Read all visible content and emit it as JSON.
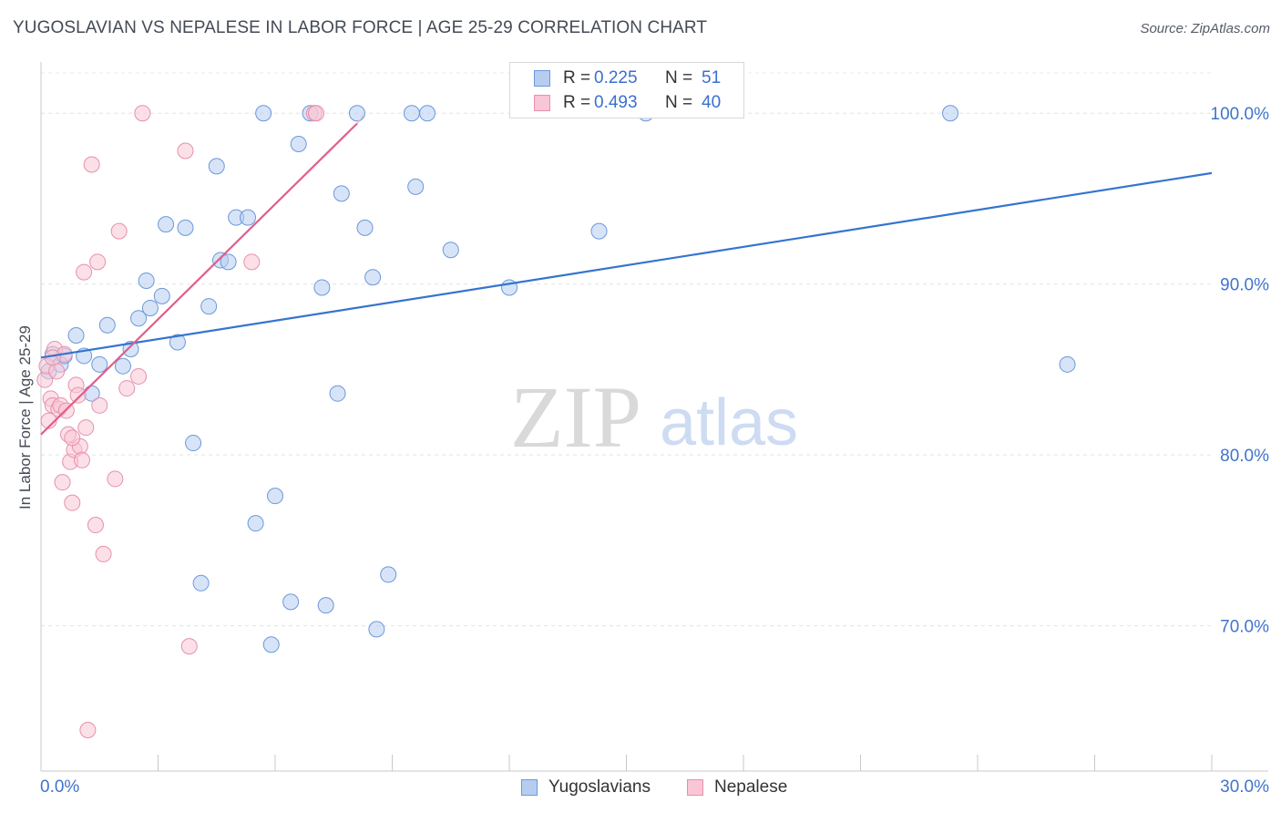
{
  "chart_data": {
    "type": "scatter",
    "title": "YUGOSLAVIAN VS NEPALESE IN LABOR FORCE | AGE 25-29 CORRELATION CHART",
    "source": "Source: ZipAtlas.com",
    "xlabel": "",
    "ylabel": "In Labor Force | Age 25-29",
    "xlim": [
      0,
      30
    ],
    "ylim": [
      61.5,
      103
    ],
    "x_tick_labels": [
      {
        "value": 0,
        "label": "0.0%"
      },
      {
        "value": 30,
        "label": "30.0%"
      }
    ],
    "y_tick_labels": [
      {
        "value": 100,
        "label": "100.0%"
      },
      {
        "value": 90,
        "label": "90.0%"
      },
      {
        "value": 80,
        "label": "80.0%"
      },
      {
        "value": 70,
        "label": "70.0%"
      }
    ],
    "watermark": {
      "part1": "ZIP",
      "part2": "atlas"
    },
    "stats_legend": [
      {
        "series": "Yugoslavians",
        "r_label": "R =",
        "r_value": "0.225",
        "n_label": "N =",
        "n_value": "51"
      },
      {
        "series": "Nepalese",
        "r_label": "R =",
        "r_value": "0.493",
        "n_label": "N =",
        "n_value": "40"
      }
    ],
    "series": [
      {
        "name": "Yugoslavians",
        "color": "#6a98dc",
        "fill": "#b7cdf0",
        "trend_color": "#3574d0",
        "trendline": {
          "x0": 0,
          "y0": 85.7,
          "x1": 30,
          "y1": 96.5
        },
        "points": [
          [
            0.2,
            84.9
          ],
          [
            0.3,
            85.9
          ],
          [
            0.5,
            85.3
          ],
          [
            0.6,
            85.8
          ],
          [
            0.9,
            87.0
          ],
          [
            1.1,
            85.8
          ],
          [
            1.3,
            83.6
          ],
          [
            1.5,
            85.3
          ],
          [
            1.7,
            87.6
          ],
          [
            2.1,
            85.2
          ],
          [
            2.3,
            86.2
          ],
          [
            2.5,
            88.0
          ],
          [
            2.7,
            90.2
          ],
          [
            2.8,
            88.6
          ],
          [
            3.1,
            89.3
          ],
          [
            3.2,
            93.5
          ],
          [
            3.5,
            86.6
          ],
          [
            3.7,
            93.3
          ],
          [
            3.9,
            80.7
          ],
          [
            4.1,
            72.5
          ],
          [
            4.3,
            88.7
          ],
          [
            4.5,
            96.9
          ],
          [
            4.6,
            91.4
          ],
          [
            4.8,
            91.3
          ],
          [
            5.0,
            93.9
          ],
          [
            5.3,
            93.9
          ],
          [
            5.5,
            76.0
          ],
          [
            5.7,
            100.0
          ],
          [
            5.9,
            68.9
          ],
          [
            6.0,
            77.6
          ],
          [
            6.4,
            71.4
          ],
          [
            6.6,
            98.2
          ],
          [
            6.9,
            100.0
          ],
          [
            7.2,
            89.8
          ],
          [
            7.3,
            71.2
          ],
          [
            7.6,
            83.6
          ],
          [
            7.7,
            95.3
          ],
          [
            8.1,
            100.0
          ],
          [
            8.3,
            93.3
          ],
          [
            8.5,
            90.4
          ],
          [
            8.9,
            73.0
          ],
          [
            9.5,
            100.0
          ],
          [
            9.6,
            95.7
          ],
          [
            9.9,
            100.0
          ],
          [
            10.5,
            92.0
          ],
          [
            12.0,
            89.8
          ],
          [
            14.3,
            93.1
          ],
          [
            15.5,
            100.0
          ],
          [
            23.3,
            100.0
          ],
          [
            26.3,
            85.3
          ],
          [
            8.6,
            69.8
          ]
        ]
      },
      {
        "name": "Nepalese",
        "color": "#e690ad",
        "fill": "#f9c6d6",
        "trend_color": "#e05f8a",
        "trendline": {
          "x0": 0,
          "y0": 81.2,
          "x1": 8.1,
          "y1": 99.4
        },
        "trendline_dashed_ext": {
          "x0": 8.1,
          "y0": 99.4,
          "x1": 8.3,
          "y1": 100.0
        },
        "points": [
          [
            0.1,
            84.4
          ],
          [
            0.15,
            85.2
          ],
          [
            0.2,
            82.0
          ],
          [
            0.25,
            83.3
          ],
          [
            0.3,
            82.9
          ],
          [
            0.35,
            86.2
          ],
          [
            0.4,
            84.9
          ],
          [
            0.45,
            82.7
          ],
          [
            0.5,
            82.9
          ],
          [
            0.6,
            85.9
          ],
          [
            0.65,
            82.6
          ],
          [
            0.7,
            81.2
          ],
          [
            0.75,
            79.6
          ],
          [
            0.8,
            77.2
          ],
          [
            0.85,
            80.3
          ],
          [
            0.9,
            84.1
          ],
          [
            0.95,
            83.5
          ],
          [
            1.0,
            80.5
          ],
          [
            1.05,
            79.7
          ],
          [
            1.1,
            90.7
          ],
          [
            1.15,
            81.6
          ],
          [
            1.3,
            97.0
          ],
          [
            1.4,
            75.9
          ],
          [
            1.45,
            91.3
          ],
          [
            1.5,
            82.9
          ],
          [
            1.6,
            74.2
          ],
          [
            1.9,
            78.6
          ],
          [
            2.0,
            93.1
          ],
          [
            2.2,
            83.9
          ],
          [
            2.5,
            84.6
          ],
          [
            2.6,
            100.0
          ],
          [
            3.7,
            97.8
          ],
          [
            3.8,
            68.8
          ],
          [
            5.4,
            91.3
          ],
          [
            7.0,
            100.0
          ],
          [
            7.05,
            100.0
          ],
          [
            1.2,
            63.9
          ],
          [
            0.55,
            78.4
          ],
          [
            0.3,
            85.7
          ],
          [
            0.8,
            81.0
          ]
        ]
      }
    ],
    "legend": [
      "Yugoslavians",
      "Nepalese"
    ]
  }
}
